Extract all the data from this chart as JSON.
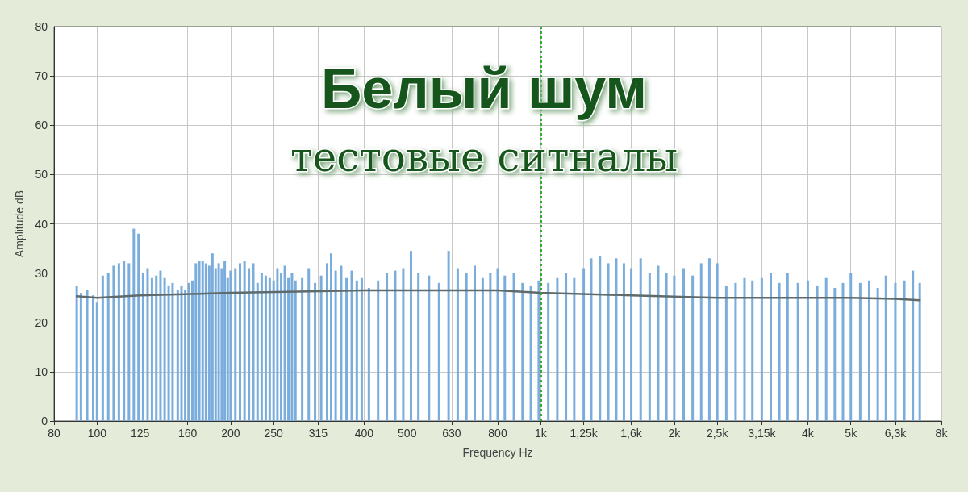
{
  "chart_data": {
    "type": "bar",
    "title": "Белый шум",
    "subtitle": "тестовые ситналы",
    "xlabel": "Frequency Hz",
    "ylabel": "Amplitude dB",
    "log": "x",
    "grid": true,
    "xlim": [
      80,
      8000
    ],
    "ylim": [
      0,
      80
    ],
    "xticks": [
      80,
      100,
      125,
      160,
      200,
      250,
      315,
      400,
      500,
      630,
      800,
      {
        "value": 1000,
        "label": "1k"
      },
      {
        "value": 1250,
        "label": "1,25k"
      },
      {
        "value": 1600,
        "label": "1,6k"
      },
      {
        "value": 2000,
        "label": "2k"
      },
      {
        "value": 2500,
        "label": "2,5k"
      },
      {
        "value": 3150,
        "label": "3,15k"
      },
      {
        "value": 4000,
        "label": "4k"
      },
      {
        "value": 5000,
        "label": "5k"
      },
      {
        "value": 6300,
        "label": "6,3k"
      },
      {
        "value": 8000,
        "label": "8k"
      }
    ],
    "yticks": [
      0,
      10,
      20,
      30,
      40,
      50,
      60,
      70,
      80
    ],
    "ref_lines": [
      {
        "axis": "x",
        "value": 1000,
        "color": "#2fae2f",
        "line_style": "dotted"
      }
    ],
    "series": [
      {
        "color": "#7aaddc",
        "x": [
          90,
          92,
          95,
          98,
          100,
          103,
          106,
          109,
          112,
          115,
          118,
          121,
          124,
          127,
          130,
          133,
          136,
          139,
          142,
          145,
          148,
          152,
          155,
          158,
          161,
          164,
          167,
          170,
          173,
          176,
          179,
          182,
          185,
          188,
          191,
          194,
          197,
          200,
          205,
          210,
          215,
          220,
          225,
          230,
          235,
          240,
          245,
          250,
          255,
          260,
          265,
          270,
          275,
          280,
          290,
          300,
          310,
          320,
          330,
          337,
          345,
          355,
          365,
          375,
          385,
          395,
          410,
          430,
          450,
          470,
          490,
          510,
          530,
          560,
          590,
          620,
          650,
          680,
          710,
          740,
          770,
          800,
          830,
          870,
          910,
          950,
          990,
          1040,
          1090,
          1140,
          1190,
          1250,
          1300,
          1360,
          1420,
          1480,
          1540,
          1600,
          1680,
          1760,
          1840,
          1920,
          2000,
          2100,
          2200,
          2300,
          2400,
          2500,
          2620,
          2750,
          2880,
          3000,
          3150,
          3300,
          3450,
          3600,
          3800,
          4000,
          4200,
          4400,
          4600,
          4800,
          5000,
          5250,
          5500,
          5750,
          6000,
          6300,
          6600,
          6900,
          7150
        ],
        "values": [
          27.5,
          26,
          26.5,
          25.5,
          24,
          29.5,
          30,
          31.5,
          32,
          32.5,
          32,
          39,
          38,
          30,
          31,
          29,
          29.5,
          30.5,
          29,
          27.5,
          28,
          26.5,
          27.5,
          26.5,
          28,
          28.5,
          32,
          32.5,
          32.5,
          32,
          31.5,
          34,
          31,
          32,
          31,
          32.5,
          29,
          30.5,
          31,
          32,
          32.5,
          31,
          32,
          28,
          30,
          29.5,
          29,
          28.5,
          31,
          30,
          31.5,
          29,
          30,
          28.5,
          29,
          31,
          28,
          29.5,
          32,
          34,
          30.5,
          31.5,
          29,
          30.5,
          28.5,
          29,
          27,
          28.5,
          30,
          30.5,
          31,
          34.5,
          30,
          29.5,
          28,
          34.5,
          31,
          30,
          31.5,
          29,
          30,
          31,
          29.5,
          30,
          28,
          27.5,
          28.5,
          28,
          29,
          30,
          29,
          31,
          33,
          33.5,
          32,
          33,
          32,
          31,
          33,
          30,
          31.5,
          30,
          29.5,
          31,
          29.5,
          32,
          33,
          32,
          27.5,
          28,
          29,
          28.5,
          29,
          30,
          28,
          30,
          28,
          28.5,
          27.5,
          29,
          27,
          28,
          30,
          28,
          28.5,
          27,
          29.5,
          28,
          28.5,
          30.5,
          28
        ]
      },
      {
        "type": "line",
        "color": "#5f6b6b",
        "marker": "none",
        "x": [
          90,
          100,
          125,
          200,
          400,
          800,
          1000,
          1600,
          2500,
          5000,
          6300,
          7150
        ],
        "values": [
          25.3,
          25,
          25.5,
          26,
          26.5,
          26.5,
          26,
          25.5,
          25,
          25,
          24.8,
          24.5
        ]
      }
    ]
  }
}
